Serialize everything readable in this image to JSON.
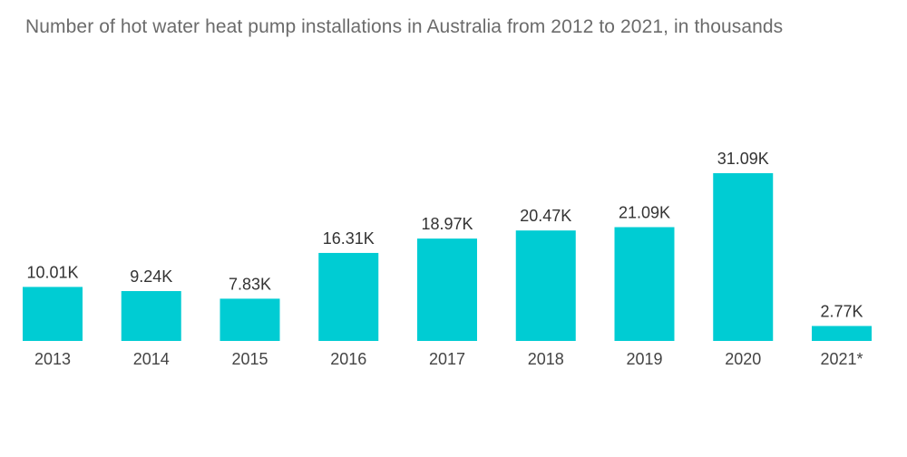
{
  "chart_data": {
    "type": "bar",
    "title": "Number of hot water heat pump installations in Australia from 2012 to 2021, in thousands",
    "categories": [
      "2013",
      "2014",
      "2015",
      "2016",
      "2017",
      "2018",
      "2019",
      "2020",
      "2021*"
    ],
    "values": [
      10.01,
      9.24,
      7.83,
      16.31,
      18.97,
      20.47,
      21.09,
      31.09,
      2.77
    ],
    "value_labels": [
      "10.01K",
      "9.24K",
      "7.83K",
      "16.31K",
      "18.97K",
      "20.47K",
      "21.09K",
      "31.09K",
      "2.77K"
    ],
    "xlabel": "",
    "ylabel": "",
    "ylim": [
      0,
      31.09
    ],
    "grid": false,
    "legend": "none",
    "bar_color": "#00CCD3"
  }
}
